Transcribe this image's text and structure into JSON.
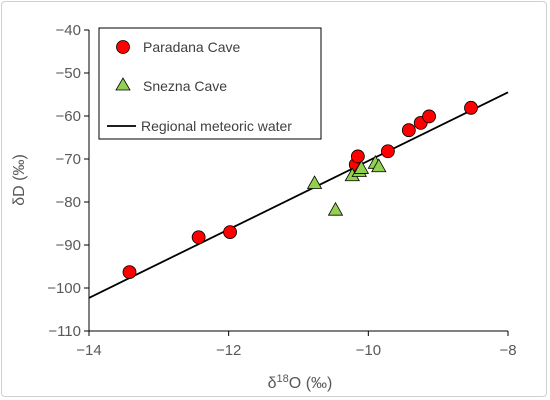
{
  "chart_data": {
    "type": "scatter",
    "xlabel": "δ18O (‰)",
    "ylabel": "δD (‰)",
    "xlim": [
      -14,
      -8
    ],
    "ylim": [
      -110,
      -40
    ],
    "xticks": [
      -14,
      -12,
      -10,
      -8
    ],
    "yticks": [
      -110,
      -100,
      -90,
      -80,
      -70,
      -60,
      -50,
      -40
    ],
    "xtick_labels": [
      "−14",
      "−12",
      "−10",
      "−8"
    ],
    "ytick_labels": [
      "−110",
      "−100",
      "−90",
      "−80",
      "−70",
      "−60",
      "−50",
      "−40"
    ],
    "grid": false,
    "legend_position": "top-left",
    "series": [
      {
        "name": "Paradana Cave",
        "marker": "circle",
        "color": "#ff0000",
        "points": [
          {
            "x": -13.42,
            "y": -96.3
          },
          {
            "x": -12.43,
            "y": -88.2
          },
          {
            "x": -11.98,
            "y": -87.0
          },
          {
            "x": -10.18,
            "y": -71.3
          },
          {
            "x": -10.15,
            "y": -69.4
          },
          {
            "x": -9.72,
            "y": -68.2
          },
          {
            "x": -9.42,
            "y": -63.3
          },
          {
            "x": -9.25,
            "y": -61.6
          },
          {
            "x": -9.13,
            "y": -60.1
          },
          {
            "x": -8.53,
            "y": -58.1
          }
        ]
      },
      {
        "name": "Snezna Cave",
        "marker": "triangle",
        "color": "#92d050",
        "points": [
          {
            "x": -10.77,
            "y": -75.7
          },
          {
            "x": -10.47,
            "y": -81.9
          },
          {
            "x": -10.23,
            "y": -73.9
          },
          {
            "x": -10.13,
            "y": -72.9
          },
          {
            "x": -10.1,
            "y": -72.2
          },
          {
            "x": -9.9,
            "y": -71.0
          },
          {
            "x": -9.85,
            "y": -71.8
          }
        ]
      },
      {
        "name": "Regional meteoric water",
        "marker": "line",
        "color": "#000000",
        "line": [
          {
            "x": -14,
            "y": -102.3
          },
          {
            "x": -8,
            "y": -54.5
          }
        ]
      }
    ]
  }
}
